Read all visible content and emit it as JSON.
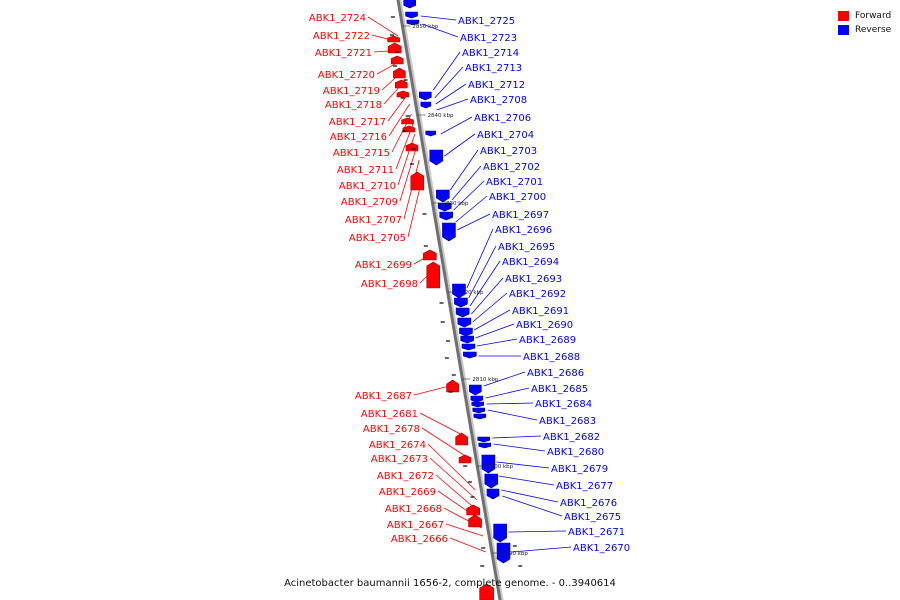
{
  "legend": {
    "forward_label": "Forward",
    "reverse_label": "Reverse",
    "forward_color": "#ff0000",
    "reverse_color": "#0000ff"
  },
  "caption": "Acinetobacter baumannii 1656-2, complete genome. - 0..3940614",
  "scale_labels": [
    "2850 kbp",
    "2840 kbp",
    "2830 kbp",
    "2820 kbp",
    "2810 kbp",
    "2800 kbp",
    "2790 kbp"
  ],
  "forward_genes": [
    "ABK1_2724",
    "ABK1_2722",
    "ABK1_2721",
    "ABK1_2720",
    "ABK1_2719",
    "ABK1_2718",
    "ABK1_2717",
    "ABK1_2716",
    "ABK1_2715",
    "ABK1_2711",
    "ABK1_2710",
    "ABK1_2709",
    "ABK1_2707",
    "ABK1_2705",
    "ABK1_2699",
    "ABK1_2698",
    "ABK1_2687",
    "ABK1_2681",
    "ABK1_2678",
    "ABK1_2674",
    "ABK1_2673",
    "ABK1_2672",
    "ABK1_2669",
    "ABK1_2668",
    "ABK1_2667",
    "ABK1_2666"
  ],
  "reverse_genes": [
    "ABK1_2725",
    "ABK1_2723",
    "ABK1_2714",
    "ABK1_2713",
    "ABK1_2712",
    "ABK1_2708",
    "ABK1_2706",
    "ABK1_2704",
    "ABK1_2703",
    "ABK1_2702",
    "ABK1_2701",
    "ABK1_2700",
    "ABK1_2697",
    "ABK1_2696",
    "ABK1_2695",
    "ABK1_2694",
    "ABK1_2693",
    "ABK1_2692",
    "ABK1_2691",
    "ABK1_2690",
    "ABK1_2689",
    "ABK1_2688",
    "ABK1_2686",
    "ABK1_2685",
    "ABK1_2684",
    "ABK1_2683",
    "ABK1_2682",
    "ABK1_2680",
    "ABK1_2679",
    "ABK1_2677",
    "ABK1_2676",
    "ABK1_2675",
    "ABK1_2671",
    "ABK1_2670"
  ]
}
